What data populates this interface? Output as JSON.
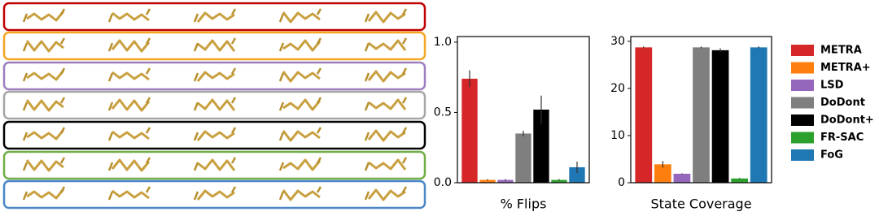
{
  "chart_data": [
    {
      "type": "bar",
      "xlabel": "% Flips",
      "values": [
        0.74,
        0.02,
        0.02,
        0.35,
        0.52,
        0.02,
        0.11
      ],
      "errors": [
        0.06,
        0.005,
        0.005,
        0.02,
        0.1,
        0.005,
        0.04
      ],
      "ylim": [
        0,
        1.04
      ],
      "yticks": [
        {
          "value": 0,
          "label": "0.0"
        },
        {
          "value": 0.5,
          "label": "0.5"
        },
        {
          "value": 1,
          "label": "1.0"
        }
      ]
    },
    {
      "type": "bar",
      "xlabel": "State Coverage",
      "values": [
        28.7,
        3.9,
        1.9,
        28.7,
        28.1,
        0.9,
        28.7
      ],
      "errors": [
        0.2,
        0.7,
        0.1,
        0.2,
        0.4,
        0.1,
        0.2
      ],
      "ylim": [
        0,
        31
      ],
      "yticks": [
        0,
        10,
        20,
        30
      ]
    }
  ],
  "legend": {
    "labels": [
      "METRA",
      "METRA+",
      "LSD",
      "DoDont",
      "DoDont+",
      "FR-SAC",
      "FoG"
    ],
    "colors": [
      "#d62728",
      "#ff7f0e",
      "#9467bd",
      "#7f7f7f",
      "#000000",
      "#2ca02c",
      "#1f77b4"
    ]
  }
}
